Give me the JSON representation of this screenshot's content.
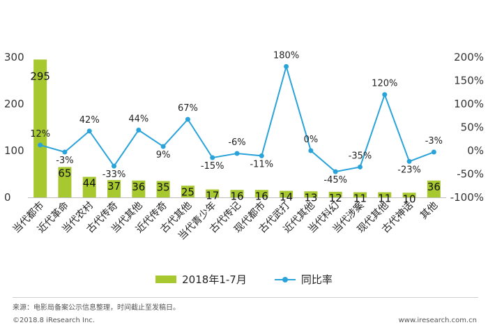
{
  "chart_data": {
    "type": "bar",
    "categories": [
      "当代都市",
      "近代革命",
      "当代农村",
      "古代传奇",
      "当代其他",
      "近代传奇",
      "古代其他",
      "当代青少年",
      "古代传记",
      "现代都市",
      "古代武打",
      "近代其他",
      "当代科幻",
      "当代涉案",
      "现代其他",
      "古代神话",
      "其他"
    ],
    "series": [
      {
        "name": "2018年1-7月",
        "type": "bar",
        "axis": "left",
        "values": [
          295,
          65,
          44,
          37,
          36,
          35,
          25,
          17,
          16,
          16,
          14,
          13,
          12,
          11,
          11,
          10,
          36
        ]
      },
      {
        "name": "同比率",
        "type": "line",
        "axis": "right",
        "values": [
          12,
          -3,
          42,
          -33,
          44,
          9,
          67,
          -15,
          -6,
          -11,
          180,
          0,
          -45,
          -35,
          120,
          -23,
          -3
        ],
        "labels": [
          "12%",
          "-3%",
          "42%",
          "-33%",
          "44%",
          "9%",
          "67%",
          "-15%",
          "-6%",
          "-11%",
          "180%",
          "0%",
          "-45%",
          "-35%",
          "120%",
          "-23%",
          "-3%"
        ]
      }
    ],
    "left_axis": {
      "ylim": [
        0,
        300
      ],
      "ticks": [
        "0",
        "100",
        "200",
        "300"
      ]
    },
    "right_axis": {
      "ylim": [
        -100,
        200
      ],
      "ticks": [
        "-100%",
        "-50%",
        "0%",
        "50%",
        "100%",
        "150%",
        "200%"
      ]
    },
    "bar_labels": [
      "295",
      "65",
      "44",
      "37",
      "36",
      "35",
      "25",
      "17",
      "16",
      "16",
      "14",
      "13",
      "12",
      "11",
      "11",
      "10",
      "36"
    ],
    "grid": false,
    "legend_position": "bottom"
  },
  "colors": {
    "bar": "#a7c82f",
    "line": "#29a3d9"
  },
  "legend": {
    "bar_label": "2018年1-7月",
    "line_label": "同比率"
  },
  "footer": {
    "source": "来源：电影局备案公示信息整理，时间截止至发稿日。",
    "copyright": "©2018.8 iResearch Inc.",
    "website": "www.iresearch.com.cn"
  }
}
